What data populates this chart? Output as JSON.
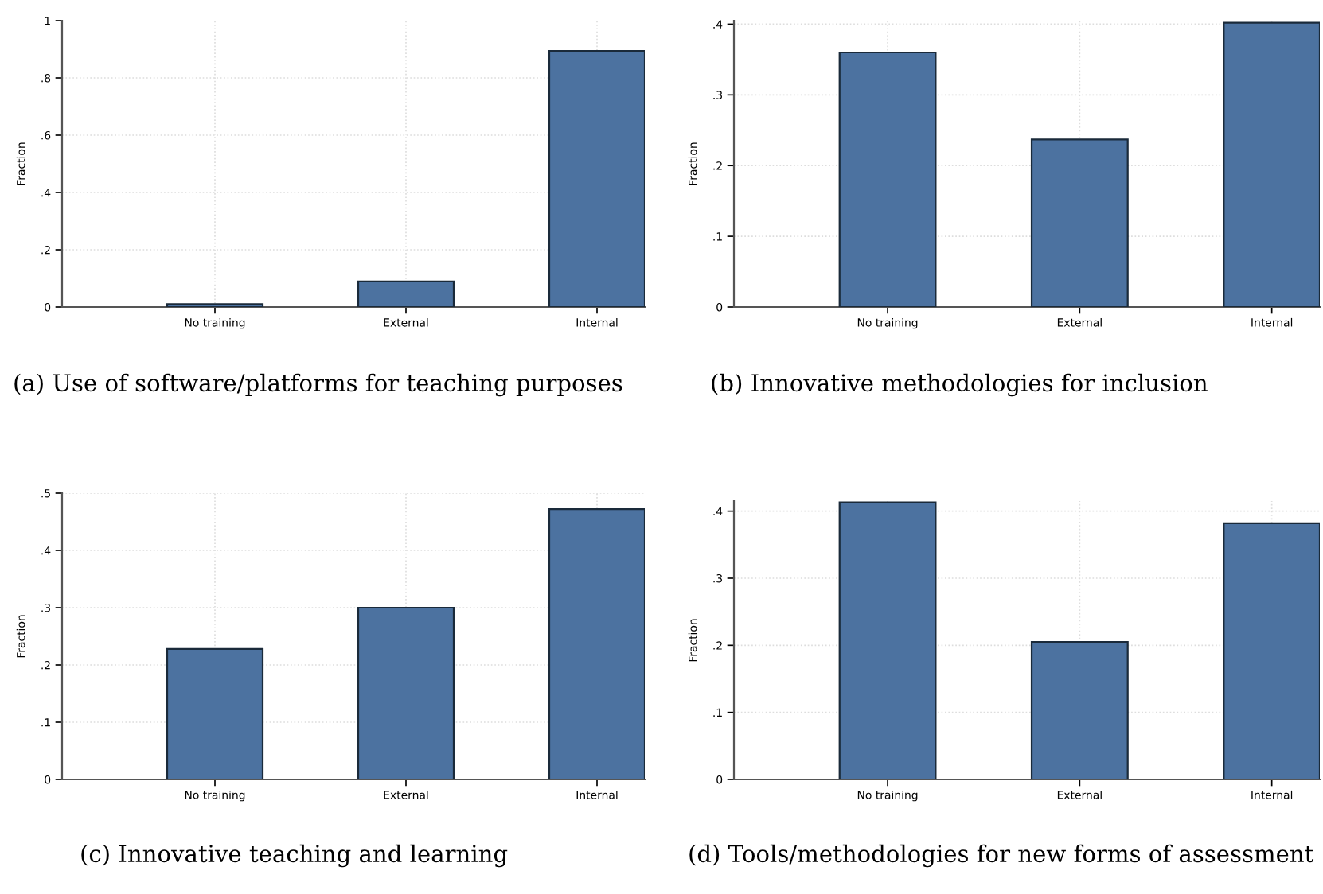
{
  "chart_data": [
    {
      "type": "bar",
      "title": "(a) Use of software/platforms for teaching purposes",
      "categories": [
        "No training",
        "External",
        "Internal"
      ],
      "values": [
        0.01,
        0.089,
        0.894
      ],
      "color": "#4c72a0",
      "ylabel": "Fraction",
      "ylim": [
        0,
        1
      ],
      "yticks": [
        0,
        {
          "value": 0.2,
          "label": ".2"
        },
        {
          "value": 0.4,
          "label": ".4"
        },
        {
          "value": 0.6,
          "label": ".6"
        },
        {
          "value": 0.8,
          "label": ".8"
        },
        1
      ],
      "grid": true
    },
    {
      "type": "bar",
      "title": "(b) Innovative methodologies for inclusion",
      "categories": [
        "No training",
        "External",
        "Internal"
      ],
      "values": [
        0.36,
        0.237,
        0.402
      ],
      "color": "#4c72a0",
      "ylabel": "Fraction",
      "ylim": [
        0,
        0.405
      ],
      "yticks": [
        0,
        {
          "value": 0.1,
          "label": ".1"
        },
        {
          "value": 0.2,
          "label": ".2"
        },
        {
          "value": 0.3,
          "label": ".3"
        },
        {
          "value": 0.4,
          "label": ".4"
        }
      ],
      "grid": true
    },
    {
      "type": "bar",
      "title": "(c) Innovative teaching and learning",
      "categories": [
        "No training",
        "External",
        "Internal"
      ],
      "values": [
        0.228,
        0.3,
        0.472
      ],
      "color": "#4c72a0",
      "ylabel": "Fraction",
      "ylim": [
        0,
        0.5
      ],
      "yticks": [
        0,
        {
          "value": 0.1,
          "label": ".1"
        },
        {
          "value": 0.2,
          "label": ".2"
        },
        {
          "value": 0.3,
          "label": ".3"
        },
        {
          "value": 0.4,
          "label": ".4"
        },
        {
          "value": 0.5,
          "label": ".5"
        }
      ],
      "grid": true
    },
    {
      "type": "bar",
      "title": "(d) Tools/methodologies for new forms of assessment",
      "categories": [
        "No training",
        "External",
        "Internal"
      ],
      "values": [
        0.413,
        0.205,
        0.382
      ],
      "color": "#4c72a0",
      "ylabel": "Fraction",
      "ylim": [
        0,
        0.415
      ],
      "yticks": [
        0,
        {
          "value": 0.1,
          "label": ".1"
        },
        {
          "value": 0.2,
          "label": ".2"
        },
        {
          "value": 0.3,
          "label": ".3"
        },
        {
          "value": 0.4,
          "label": ".4"
        }
      ],
      "grid": true
    }
  ]
}
